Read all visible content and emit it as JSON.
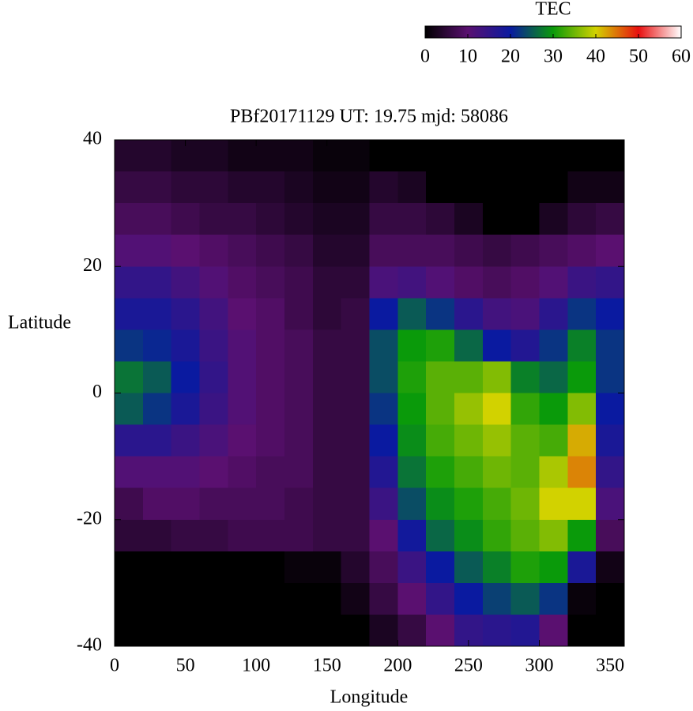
{
  "chart_data": {
    "type": "heatmap",
    "title": "PBf20171129  UT: 19.75  mjd: 58086",
    "x_label": "Longitude",
    "y_label": "Latitude",
    "colorbar_label": "TEC",
    "xlim": [
      0,
      360
    ],
    "ylim": [
      -40,
      40
    ],
    "zlim": [
      0,
      60
    ],
    "xticks": [
      0,
      50,
      100,
      150,
      200,
      250,
      300,
      350
    ],
    "yticks": [
      -40,
      -20,
      0,
      20,
      40
    ],
    "zticks": [
      0,
      10,
      20,
      30,
      40,
      50,
      60
    ],
    "colorscale": [
      "#000000",
      "#5a1070",
      "#0a1aa0",
      "#0a9a0a",
      "#d2d200",
      "#e81010",
      "#ffffff"
    ],
    "x": [
      10,
      30,
      50,
      70,
      90,
      110,
      130,
      150,
      170,
      190,
      210,
      230,
      250,
      270,
      290,
      310,
      330,
      350
    ],
    "y": [
      37.5,
      32.5,
      27.5,
      22.5,
      17.5,
      12.5,
      7.5,
      2.5,
      -2.5,
      -7.5,
      -12.5,
      -17.5,
      -22.5,
      -27.5,
      -32.5,
      -37.5
    ],
    "z": [
      [
        4,
        4,
        3,
        3,
        2,
        2,
        2,
        1,
        1,
        0,
        0,
        0,
        0,
        0,
        0,
        0,
        0,
        0
      ],
      [
        6,
        6,
        5,
        5,
        4,
        4,
        3,
        2,
        2,
        4,
        3,
        0,
        0,
        0,
        0,
        0,
        2,
        2
      ],
      [
        8,
        8,
        7,
        6,
        6,
        5,
        4,
        3,
        3,
        6,
        6,
        5,
        3,
        0,
        0,
        3,
        5,
        6
      ],
      [
        11,
        11,
        10,
        9,
        8,
        7,
        6,
        4,
        4,
        8,
        8,
        8,
        7,
        6,
        7,
        8,
        9,
        10
      ],
      [
        15,
        15,
        13,
        11,
        9,
        8,
        7,
        5,
        5,
        12,
        13,
        11,
        9,
        8,
        9,
        11,
        14,
        15
      ],
      [
        18,
        18,
        16,
        13,
        10,
        9,
        7,
        5,
        6,
        20,
        25,
        22,
        16,
        13,
        12,
        16,
        22,
        20
      ],
      [
        22,
        21,
        18,
        14,
        11,
        9,
        8,
        6,
        6,
        24,
        30,
        31,
        26,
        20,
        17,
        22,
        28,
        22
      ],
      [
        27,
        25,
        20,
        15,
        11,
        9,
        8,
        6,
        6,
        24,
        31,
        34,
        34,
        36,
        28,
        26,
        30,
        22
      ],
      [
        25,
        22,
        18,
        14,
        11,
        9,
        8,
        6,
        6,
        22,
        30,
        34,
        37,
        40,
        32,
        30,
        36,
        20
      ],
      [
        16,
        16,
        14,
        12,
        10,
        9,
        8,
        6,
        6,
        20,
        29,
        33,
        35,
        37,
        34,
        33,
        42,
        18
      ],
      [
        11,
        11,
        11,
        10,
        9,
        8,
        8,
        6,
        6,
        17,
        27,
        31,
        33,
        35,
        34,
        38,
        44,
        15
      ],
      [
        7,
        9,
        9,
        8,
        8,
        8,
        7,
        6,
        6,
        14,
        24,
        29,
        31,
        33,
        35,
        40,
        40,
        12
      ],
      [
        5,
        5,
        6,
        6,
        7,
        7,
        7,
        6,
        6,
        10,
        19,
        26,
        29,
        32,
        34,
        36,
        30,
        8
      ],
      [
        0,
        0,
        0,
        0,
        0,
        0,
        1,
        1,
        4,
        8,
        14,
        20,
        25,
        28,
        31,
        30,
        18,
        2
      ],
      [
        0,
        0,
        0,
        0,
        0,
        0,
        0,
        0,
        2,
        6,
        10,
        15,
        20,
        23,
        25,
        22,
        1,
        0
      ],
      [
        0,
        0,
        0,
        0,
        0,
        0,
        0,
        0,
        0,
        3,
        6,
        10,
        15,
        16,
        17,
        10,
        0,
        0
      ]
    ]
  }
}
